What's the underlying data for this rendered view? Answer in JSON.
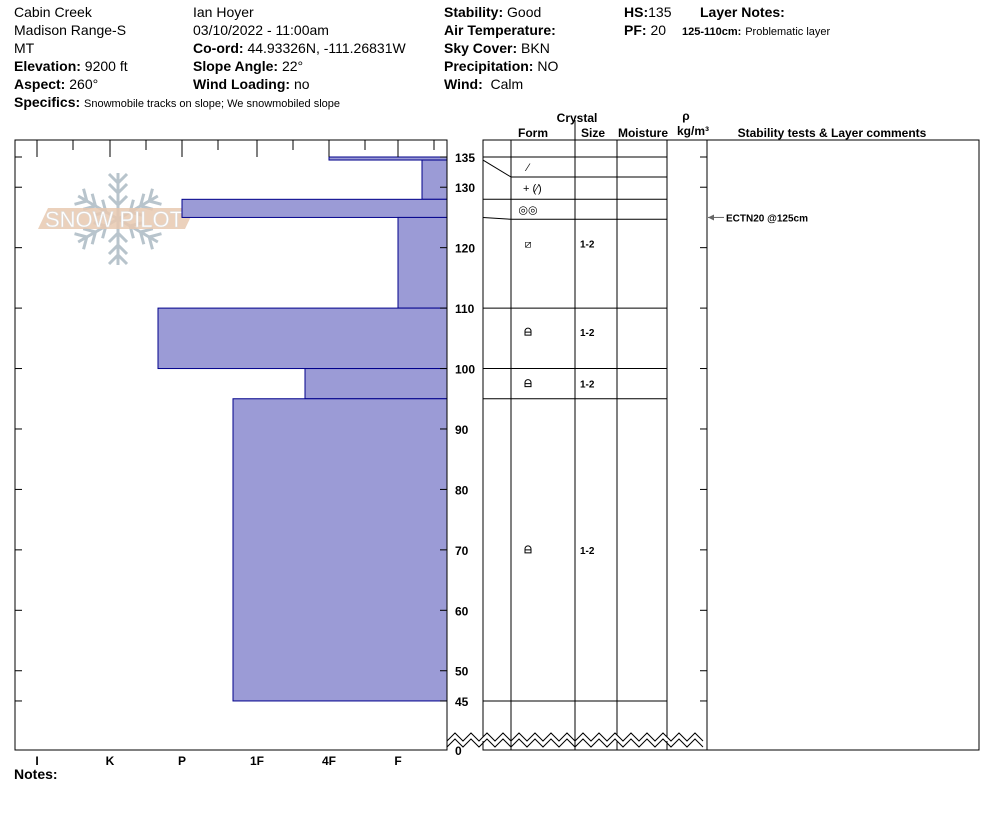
{
  "header": {
    "location": "Cabin Creek",
    "range": "Madison Range-S",
    "state": "MT",
    "elevation_label": "Elevation:",
    "elevation": "9200 ft",
    "aspect_label": "Aspect:",
    "aspect": "260°",
    "observer": "Ian Hoyer",
    "datetime": "03/10/2022 - 11:00am",
    "coord_label": "Co-ord:",
    "coord": "44.93326N, -111.26831W",
    "slope_label": "Slope Angle:",
    "slope": "22°",
    "wind_loading_label": "Wind Loading:",
    "wind_loading": "no",
    "stability_label": "Stability:",
    "stability": "Good",
    "air_temp_label": "Air Temperature:",
    "air_temp": "",
    "sky_label": "Sky Cover:",
    "sky": "BKN",
    "precip_label": "Precipitation:",
    "precip": "NO",
    "wind_label": "Wind:",
    "wind": "Calm",
    "hs_label": "HS:",
    "hs": "135",
    "pf_label": "PF:",
    "pf": "20",
    "layer_notes_label": "Layer Notes:",
    "layer_note_range": "125-110cm:",
    "layer_note_text": "Problematic layer",
    "specifics_label": "Specifics:",
    "specifics": "Snowmobile tracks on slope; We snowmobiled slope",
    "notes_label": "Notes:"
  },
  "columns": {
    "crystal": "Crystal",
    "form": "Form",
    "size": "Size",
    "moisture": "Moisture",
    "rho": "ρ",
    "density": "kg/m³",
    "stability": "Stability tests & Layer comments"
  },
  "hardness_axis": [
    "I",
    "K",
    "P",
    "1F",
    "4F",
    "F"
  ],
  "height_ticks": [
    "135",
    "130",
    "120",
    "110",
    "100",
    "90",
    "80",
    "70",
    "60",
    "50",
    "45",
    "0"
  ],
  "logo_text": "SNOW PILOT",
  "layers": [
    {
      "top": 135,
      "bottom": 134.5,
      "hardness": "4F",
      "form": "⁄",
      "size": ""
    },
    {
      "top": 134.5,
      "bottom": 128,
      "hardness": "F-",
      "form": "+ (⁄)",
      "size": ""
    },
    {
      "top": 128,
      "bottom": 125,
      "hardness": "P",
      "form": "◎◎",
      "size": ""
    },
    {
      "top": 125,
      "bottom": 110,
      "hardness": "F",
      "form": "⧄",
      "size": "1-2"
    },
    {
      "top": 110,
      "bottom": 100,
      "hardness": "P+",
      "form": "depth-hoar",
      "size": "1-2"
    },
    {
      "top": 100,
      "bottom": 95,
      "hardness": "4F+",
      "form": "depth-hoar",
      "size": "1-2"
    },
    {
      "top": 95,
      "bottom": 45,
      "hardness": "1F+",
      "form": "depth-hoar",
      "size": "1-2"
    }
  ],
  "stability_tests": [
    {
      "text": "ECTN20 @125cm",
      "depth": 125
    }
  ],
  "colors": {
    "layer_fill": "#9b9bd6",
    "layer_stroke": "#00008b",
    "logo": "#e8c9b0",
    "flake": "#b8c4cc"
  }
}
